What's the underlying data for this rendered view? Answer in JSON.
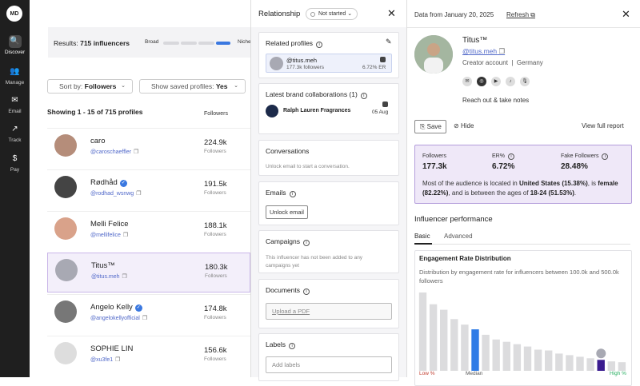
{
  "nav": {
    "logo": "MD",
    "items": [
      {
        "label": "Discover",
        "icon": "search-icon",
        "glyph": "🔍",
        "active": true
      },
      {
        "label": "Manage",
        "icon": "people-icon",
        "glyph": "👥"
      },
      {
        "label": "Email",
        "icon": "inbox-icon",
        "glyph": "✉"
      },
      {
        "label": "Track",
        "icon": "trend-icon",
        "glyph": "↗"
      },
      {
        "label": "Pay",
        "icon": "dollar-icon",
        "glyph": "$"
      }
    ]
  },
  "results": {
    "prefix": "Results:",
    "count": "715 influencers",
    "broad": "Broad",
    "niche": "Niche",
    "slider_level": 0.75
  },
  "filters": {
    "sort_label": "Sort by:",
    "sort_value": "Followers",
    "saved_label": "Show saved profiles:",
    "saved_value": "Yes"
  },
  "list": {
    "showing": "Showing 1 - 15 of 715 profiles",
    "followers_header": "Followers",
    "rows": [
      {
        "name": "caro",
        "handle": "@caroschaeffler",
        "count": "224.9k",
        "label": "Followers",
        "verified": false,
        "selected": false
      },
      {
        "name": "Rødhåd",
        "handle": "@rodhad_wsnwg",
        "count": "191.5k",
        "label": "Followers",
        "verified": true,
        "selected": false
      },
      {
        "name": "Melli Felice",
        "handle": "@mellifelice",
        "count": "188.1k",
        "label": "Followers",
        "verified": false,
        "selected": false
      },
      {
        "name": "Titus™",
        "handle": "@titus.meh",
        "count": "180.3k",
        "label": "Followers",
        "verified": false,
        "selected": true
      },
      {
        "name": "Angelo Kelly",
        "handle": "@angelokellyofficial",
        "count": "174.8k",
        "label": "Followers",
        "verified": true,
        "selected": false
      },
      {
        "name": "SOPHIE LIN",
        "handle": "@xu3fe1",
        "count": "156.6k",
        "label": "Followers",
        "verified": false,
        "selected": false
      }
    ]
  },
  "relationship": {
    "title": "Relationship",
    "status": "Not started",
    "related_profiles": {
      "title": "Related profiles",
      "handle": "@titus.meh",
      "followers": "177.3k followers",
      "er": "6.72% ER"
    },
    "collabs": {
      "title": "Latest brand collaborations (1)",
      "brand": "Ralph Lauren Fragrances",
      "date": "05 Aug"
    },
    "conversations": {
      "title": "Conversations",
      "text": "Unlock email to start a conversation."
    },
    "emails": {
      "title": "Emails",
      "button": "Unlock email"
    },
    "campaigns": {
      "title": "Campaigns",
      "text": "This influencer has not been added to any campaigns yet"
    },
    "documents": {
      "title": "Documents",
      "upload": "Upload a PDF"
    },
    "labels": {
      "title": "Labels",
      "placeholder": "Add labels"
    }
  },
  "profile": {
    "data_from": "Data from January 20, 2025",
    "refresh": "Refresh",
    "name": "Titus™",
    "handle": "@titus.meh",
    "account_type": "Creator account",
    "country": "Germany",
    "socials": [
      {
        "icon": "email-icon",
        "glyph": "✉"
      },
      {
        "icon": "instagram-icon",
        "glyph": "◎"
      },
      {
        "icon": "youtube-icon",
        "glyph": "▶"
      },
      {
        "icon": "tiktok-icon",
        "glyph": "♪"
      },
      {
        "icon": "podcast-icon",
        "glyph": "🎙"
      }
    ],
    "reach_out": "Reach out & take notes",
    "save": "Save",
    "hide": "Hide",
    "view_full": "View full report"
  },
  "stats": {
    "followers_label": "Followers",
    "followers_value": "177.3k",
    "er_label": "ER%",
    "er_value": "6.72%",
    "fake_label": "Fake Followers",
    "fake_value": "28.48%",
    "summary_1": "Most of the audience is located in ",
    "summary_country": "United States (15.38%)",
    "summary_2": ", is ",
    "summary_gender": "female (82.22%)",
    "summary_3": ", and is between the ages of ",
    "summary_age": "18-24 (51.53%)",
    "summary_4": "."
  },
  "performance": {
    "title": "Influencer performance",
    "tab_basic": "Basic",
    "tab_advanced": "Advanced"
  },
  "chart_data": {
    "type": "bar",
    "title": "Engagement Rate Distribution",
    "subtitle": "Distribution by engagement rate for influencers between 100.0k and 500.0k followers",
    "values": [
      100,
      85,
      78,
      66,
      59,
      53,
      46,
      40,
      37,
      34,
      31,
      27,
      26,
      22,
      20,
      18,
      16,
      14,
      12,
      11
    ],
    "highlight_median_index": 5,
    "highlight_influencer_index": 17,
    "colors": {
      "bar": "#dcdcde",
      "median": "#2f7be6",
      "influencer": "#3a1b8f"
    },
    "x_low_label": "Low %",
    "x_median_label": "Median",
    "x_high_label": "High %"
  }
}
